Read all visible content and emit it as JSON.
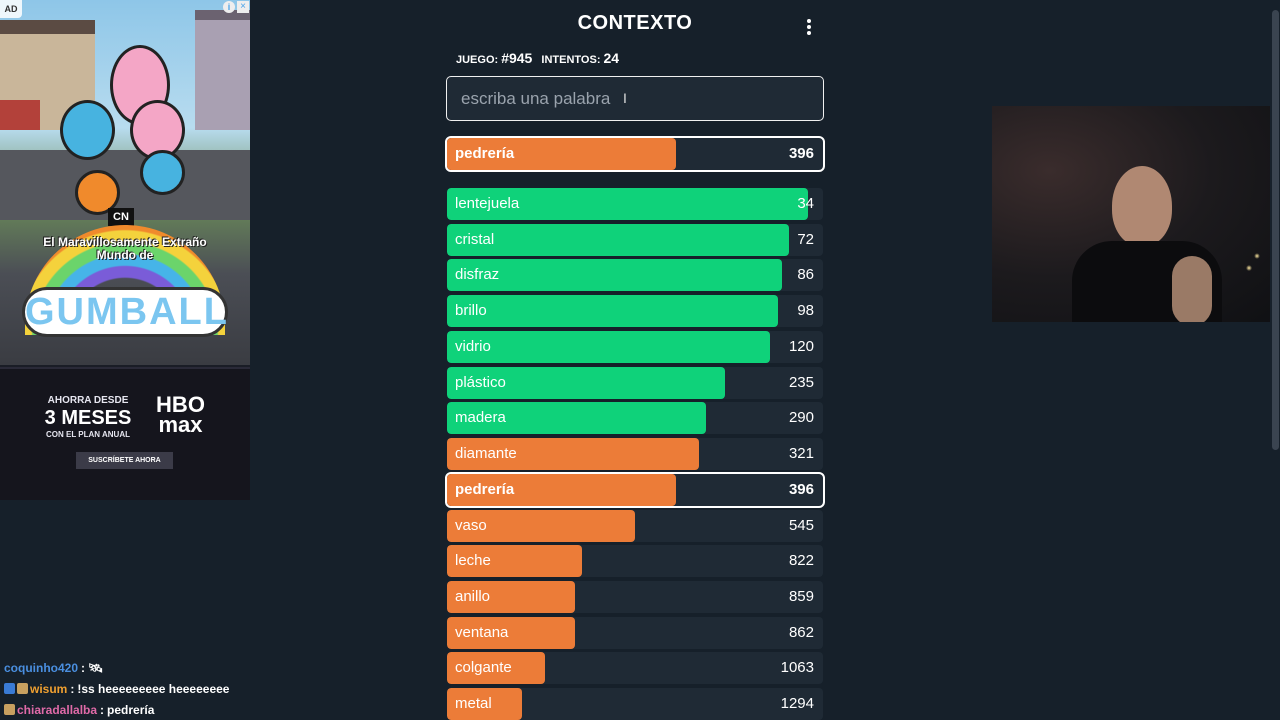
{
  "ad": {
    "badge": "AD",
    "info": "i",
    "close": "×",
    "cn_logo": "CN",
    "subtitle": "El Maravillosamente Extraño Mundo de",
    "show_logo": "GUMBALL",
    "promo_line1": "AHORRA DESDE",
    "promo_line2": "3 MESES",
    "promo_line3": "CON EL PLAN ANUAL",
    "brand": "HBO max",
    "cta": "SUSCRÍBETE AHORA"
  },
  "game": {
    "title": "CONTEXTO",
    "game_label": "JUEGO:",
    "game_number": "#945",
    "attempts_label": "INTENTOS:",
    "attempts": "24",
    "input_placeholder": "escriba una palabra",
    "last_guess": {
      "word": "pedrería",
      "rank": "396"
    },
    "guesses": [
      {
        "word": "lentejuela",
        "rank": "34"
      },
      {
        "word": "cristal",
        "rank": "72"
      },
      {
        "word": "disfraz",
        "rank": "86"
      },
      {
        "word": "brillo",
        "rank": "98"
      },
      {
        "word": "vidrio",
        "rank": "120"
      },
      {
        "word": "plástico",
        "rank": "235"
      },
      {
        "word": "madera",
        "rank": "290"
      },
      {
        "word": "diamante",
        "rank": "321"
      },
      {
        "word": "pedrería",
        "rank": "396"
      },
      {
        "word": "vaso",
        "rank": "545"
      },
      {
        "word": "leche",
        "rank": "822"
      },
      {
        "word": "anillo",
        "rank": "859"
      },
      {
        "word": "ventana",
        "rank": "862"
      },
      {
        "word": "colgante",
        "rank": "1063"
      },
      {
        "word": "metal",
        "rank": "1294"
      }
    ],
    "bar_fill": [
      0.96,
      0.91,
      0.89,
      0.88,
      0.86,
      0.74,
      0.69,
      0.67,
      0.61,
      0.5,
      0.36,
      0.34,
      0.34,
      0.26,
      0.2
    ],
    "last_bar_fill": 0.61,
    "colors": {
      "green": "#0fd27a",
      "orange": "#ec7c38",
      "red": "#f02f52"
    }
  },
  "chat": [
    {
      "user": "coquinho420",
      "user_color": "#4a8fe0",
      "sep": ":",
      "msg": "🛰",
      "icons": []
    },
    {
      "user": "wisum",
      "user_color": "#f0a030",
      "sep": ":",
      "msg": "!ss heeeeeeeee heeeeeeee",
      "icons": [
        "#3a7bd5",
        "#c8a060"
      ]
    },
    {
      "user": "chiaradallalba",
      "user_color": "#e06aa8",
      "sep": ":",
      "msg": "pedrería",
      "icons": [
        "#c8a060"
      ]
    }
  ]
}
